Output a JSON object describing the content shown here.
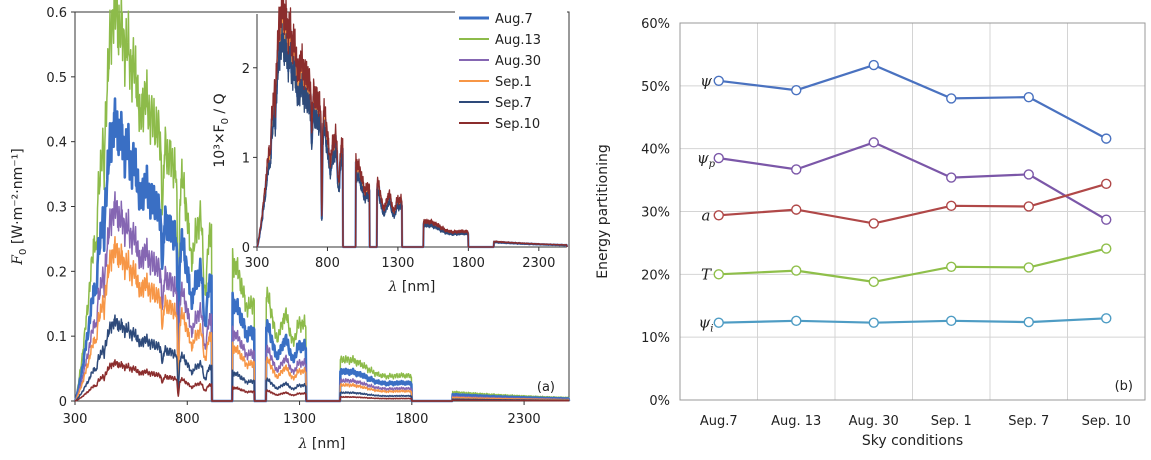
{
  "chart_data": [
    {
      "type": "line",
      "panel_label": "(a)",
      "xlabel_symbol": "λ",
      "xlabel_unit": " [nm]",
      "ylabel_symbol": "F",
      "ylabel_sub": "0",
      "ylabel_unit": " [W·m⁻²·nm⁻¹]",
      "xlim": [
        300,
        2500
      ],
      "ylim": [
        0,
        0.6
      ],
      "xticks": [
        "300",
        "800",
        "1300",
        "1800",
        "2300"
      ],
      "yticks": [
        "0",
        "0.1",
        "0.2",
        "0.3",
        "0.4",
        "0.5",
        "0.6"
      ],
      "legend_position": "inset-right",
      "series": [
        {
          "name": "Aug.7",
          "color": "#3a6fc4",
          "peak": 0.405
        },
        {
          "name": "Aug.13",
          "color": "#8dbb4a",
          "peak": 0.57
        },
        {
          "name": "Aug.30",
          "color": "#8566b2",
          "peak": 0.28
        },
        {
          "name": "Sep.1",
          "color": "#f79646",
          "peak": 0.22
        },
        {
          "name": "Sep.7",
          "color": "#2e4a7a",
          "peak": 0.115
        },
        {
          "name": "Sep.10",
          "color": "#8b2d2d",
          "peak": 0.055
        }
      ]
    },
    {
      "type": "line",
      "inset": true,
      "ylabel_text": "10³×F",
      "ylabel_sub": "0",
      "ylabel_tail": " / Q",
      "xlabel_symbol": "λ",
      "xlabel_unit": " [nm]",
      "xlim": [
        300,
        2500
      ],
      "ylim": [
        0,
        2.6
      ],
      "xticks": [
        "300",
        "800",
        "1300",
        "1800",
        "2300"
      ],
      "yticks": [
        "0",
        "1",
        "2"
      ],
      "peak": 2.3
    },
    {
      "type": "line",
      "panel_label": "(b)",
      "xlabel": "Sky conditions",
      "ylabel": "Energy partitioning",
      "ylim": [
        0,
        60
      ],
      "yticks": [
        "0%",
        "10%",
        "20%",
        "30%",
        "40%",
        "50%",
        "60%"
      ],
      "categories": [
        "Aug.7",
        "Aug. 13",
        "Aug. 30",
        "Sep. 1",
        "Sep. 7",
        "Sep. 10"
      ],
      "series": [
        {
          "name": "ψ",
          "sub": "",
          "color": "#4a72c0",
          "values": [
            50.8,
            49.3,
            53.3,
            48.0,
            48.2,
            41.6
          ]
        },
        {
          "name": "ψ",
          "sub": "p",
          "color": "#7b57a8",
          "values": [
            38.5,
            36.7,
            41.0,
            35.4,
            35.9,
            28.7
          ]
        },
        {
          "name": "a",
          "sub": "",
          "color": "#b04848",
          "values": [
            29.4,
            30.3,
            28.1,
            30.9,
            30.8,
            34.4
          ]
        },
        {
          "name": "T",
          "sub": "",
          "color": "#8fbf4a",
          "values": [
            20.0,
            20.6,
            18.8,
            21.2,
            21.1,
            24.1
          ]
        },
        {
          "name": "ψ",
          "sub": "i",
          "color": "#4e9cc4",
          "values": [
            12.3,
            12.6,
            12.3,
            12.6,
            12.4,
            13.0
          ]
        }
      ]
    }
  ]
}
